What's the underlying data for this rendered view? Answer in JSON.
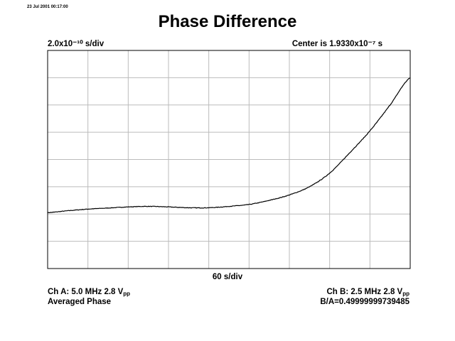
{
  "timestamp": "23 Jul 2001 00:17:00",
  "header": {
    "horizontal_scale": "2.0x10⁻¹⁰ s/div",
    "center": "Center is 1.9330x10⁻⁷ s"
  },
  "footer": {
    "ch_a_main": "Ch A: 5.0 MHz 2.8 V",
    "ch_a_sub": "pp",
    "mode": "Averaged Phase",
    "ch_b_main": "Ch B: 2.5 MHz 2.8 V",
    "ch_b_sub": "pp",
    "ratio": "B/A=0.49999999739485"
  },
  "colors": {
    "trace": "#000000",
    "grid": "#bbbbbb",
    "frame": "#000000"
  },
  "chart_data": {
    "type": "line",
    "title": "Phase Difference",
    "xlabel": "60 s/div",
    "ylabel": "",
    "grid": true,
    "x_divisions": 9,
    "y_divisions": 8,
    "xlim": [
      0,
      9
    ],
    "ylim": [
      0,
      8
    ],
    "series": [
      {
        "x": [
          0,
          0.5,
          1,
          1.5,
          2,
          2.5,
          3,
          3.5,
          4,
          4.5,
          5,
          5.5,
          6,
          6.5,
          7,
          7.5,
          8,
          8.5,
          9
        ],
        "y": [
          2.05,
          2.12,
          2.18,
          2.22,
          2.26,
          2.28,
          2.26,
          2.23,
          2.23,
          2.28,
          2.35,
          2.5,
          2.7,
          3.0,
          3.5,
          4.25,
          5.05,
          6.0,
          7.0
        ]
      }
    ]
  }
}
